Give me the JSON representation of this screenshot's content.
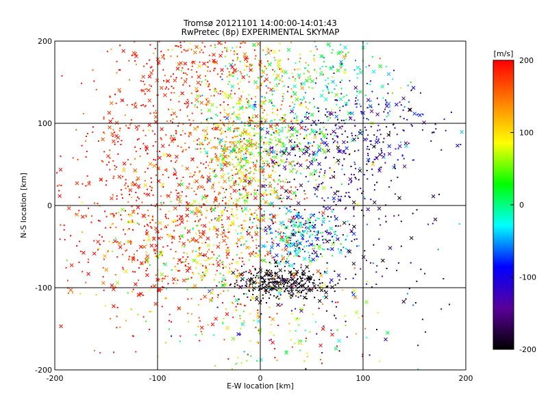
{
  "chart_data": {
    "type": "scatter",
    "title": "Tromsø 20121101 14:00:00-14:01:43",
    "subtitle": "RwPretec (8p) EXPERIMENTAL SKYMAP",
    "xlabel": "E-W location [km]",
    "ylabel": "N-S location [km]",
    "xlim": [
      -200,
      200
    ],
    "ylim": [
      -200,
      200
    ],
    "xticks": [
      "-200",
      "-100",
      "0",
      "100",
      "200"
    ],
    "yticks": [
      "-200",
      "-100",
      "0",
      "100",
      "200"
    ],
    "grid": true,
    "colorbar": {
      "label": "[m/s]",
      "range": [
        -200,
        200
      ],
      "ticks": [
        "200",
        "100",
        "0",
        "-100",
        "-200"
      ],
      "colormap": [
        "#000000",
        "#5a009a",
        "#0000ff",
        "#00ffff",
        "#00ff00",
        "#ffff00",
        "#ff7f00",
        "#ff0000"
      ]
    },
    "markers": [
      "dot",
      "x"
    ],
    "clusters": [
      {
        "x": -60,
        "y": 50,
        "sx": 55,
        "sy": 70,
        "v": 185,
        "sv": 30,
        "n": 520
      },
      {
        "x": -140,
        "y": 20,
        "sx": 40,
        "sy": 80,
        "v": 190,
        "sv": 20,
        "n": 260
      },
      {
        "x": -20,
        "y": 60,
        "sx": 25,
        "sy": 50,
        "v": 110,
        "sv": 50,
        "n": 420
      },
      {
        "x": 10,
        "y": 80,
        "sx": 35,
        "sy": 35,
        "v": 30,
        "sv": 60,
        "n": 380
      },
      {
        "x": 70,
        "y": 150,
        "sx": 35,
        "sy": 30,
        "v": -10,
        "sv": 40,
        "n": 150
      },
      {
        "x": 110,
        "y": 90,
        "sx": 40,
        "sy": 30,
        "v": -120,
        "sv": 50,
        "n": 220
      },
      {
        "x": 60,
        "y": 30,
        "sx": 40,
        "sy": 50,
        "v": -160,
        "sv": 50,
        "n": 260
      },
      {
        "x": 40,
        "y": -40,
        "sx": 25,
        "sy": 20,
        "v": -50,
        "sv": 50,
        "n": 280
      },
      {
        "x": 20,
        "y": -95,
        "sx": 25,
        "sy": 10,
        "v": -195,
        "sv": 10,
        "n": 320
      },
      {
        "x": -40,
        "y": -50,
        "sx": 45,
        "sy": 40,
        "v": 120,
        "sv": 70,
        "n": 360
      },
      {
        "x": -100,
        "y": -60,
        "sx": 60,
        "sy": 50,
        "v": 160,
        "sv": 60,
        "n": 220
      },
      {
        "x": 20,
        "y": -150,
        "sx": 50,
        "sy": 35,
        "v": 80,
        "sv": 110,
        "n": 180
      },
      {
        "x": 120,
        "y": -70,
        "sx": 50,
        "sy": 70,
        "v": -150,
        "sv": 60,
        "n": 90
      },
      {
        "x": -60,
        "y": 170,
        "sx": 40,
        "sy": 25,
        "v": 185,
        "sv": 20,
        "n": 180
      },
      {
        "x": 20,
        "y": 175,
        "sx": 40,
        "sy": 20,
        "v": 100,
        "sv": 60,
        "n": 140
      }
    ]
  }
}
